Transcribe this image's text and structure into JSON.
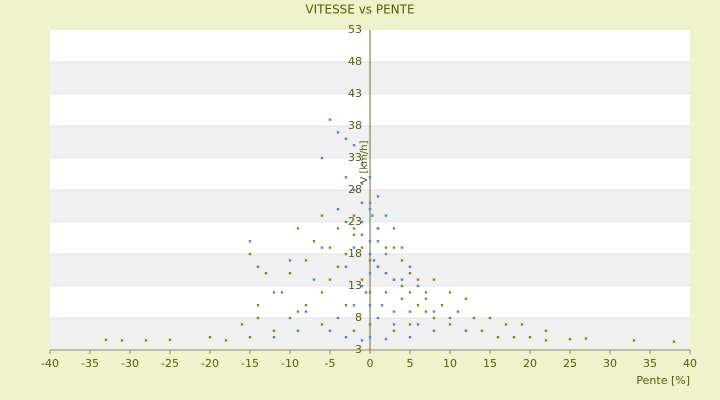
{
  "chart_data": {
    "type": "scatter",
    "title": "VITESSE vs PENTE",
    "x_label": "Pente [%]",
    "y_label": "V [km/h]",
    "xlim": [
      -40,
      40
    ],
    "xticks": [
      -40,
      -35,
      -30,
      -25,
      -20,
      -15,
      -10,
      -5,
      0,
      5,
      10,
      15,
      20,
      25,
      30,
      35,
      40
    ],
    "ylim": [
      3,
      53
    ],
    "yticks": [
      3,
      8,
      13,
      18,
      23,
      28,
      33,
      38,
      43,
      48,
      53
    ],
    "grid": true,
    "series": [
      {
        "color": "#8a8a00",
        "x": [
          -15,
          -18,
          -12,
          -10,
          -8,
          -6,
          -5,
          -4,
          -3,
          -7,
          -9,
          -6,
          -3,
          -2,
          -1,
          0,
          1,
          2,
          3,
          4,
          5,
          6,
          7,
          8,
          10,
          12,
          14,
          16,
          18,
          20,
          22,
          25,
          27,
          33,
          38,
          -20,
          -25,
          -28,
          -31,
          -33,
          -14,
          -11,
          -13,
          -15,
          -10,
          -8,
          -5,
          -2,
          -4,
          1,
          2,
          4,
          5,
          3,
          6,
          7,
          9,
          11,
          13,
          15,
          17,
          19,
          22,
          10,
          8,
          -16,
          -14,
          -9,
          -6,
          -2,
          0,
          3,
          5,
          12,
          -1,
          0,
          -3
        ],
        "y": [
          5,
          4.5,
          6,
          8,
          10,
          12,
          14,
          16,
          18,
          20,
          22,
          24,
          23,
          21,
          19,
          17,
          16,
          15,
          14,
          13,
          12,
          10,
          9,
          8,
          7,
          6,
          6,
          5,
          5,
          5,
          4.5,
          4.7,
          4.8,
          4.5,
          4.3,
          5,
          4.6,
          4.5,
          4.5,
          4.6,
          10,
          12,
          15,
          18,
          15,
          17,
          19,
          24,
          22,
          22,
          19,
          17,
          15,
          19,
          14,
          12,
          10,
          9,
          8,
          8,
          7,
          7,
          6,
          12,
          14,
          7,
          8,
          9,
          7,
          6,
          7,
          6,
          7,
          11,
          14,
          12,
          10
        ]
      },
      {
        "color": "#3c8ddc",
        "x": [
          -5,
          -4,
          -3,
          -2,
          -6,
          -1,
          0,
          -3,
          -2,
          1,
          -1,
          0,
          2,
          -4,
          3,
          1,
          -1,
          0,
          -2,
          4,
          2,
          -6,
          5,
          1,
          -3,
          0,
          3,
          6,
          -1,
          2,
          -7,
          7,
          4,
          0,
          -2,
          8,
          5,
          1,
          10,
          3,
          -4,
          12,
          6,
          -8,
          -12,
          -14,
          -10,
          -15,
          0,
          -3,
          5,
          -1,
          2,
          8,
          -5,
          -9,
          -12,
          0,
          1,
          -1,
          0.5,
          2,
          -0.5,
          1.5,
          3,
          4,
          -2,
          0,
          -1,
          0.3
        ],
        "y": [
          39,
          37,
          36,
          35,
          33,
          32,
          30,
          30,
          28,
          27,
          26,
          25,
          24,
          25,
          22,
          22,
          21,
          20,
          19,
          19,
          18,
          19,
          16,
          16,
          16,
          15,
          14,
          13,
          13,
          12,
          14,
          11,
          11,
          10,
          10,
          9,
          9,
          8,
          8,
          7,
          8,
          6,
          7,
          9,
          12,
          16,
          17,
          20,
          5,
          5,
          5,
          4.5,
          4.7,
          6,
          6,
          6,
          5,
          18,
          20,
          23,
          17,
          15,
          12,
          10,
          9,
          14,
          22,
          26,
          29,
          24
        ]
      }
    ]
  }
}
